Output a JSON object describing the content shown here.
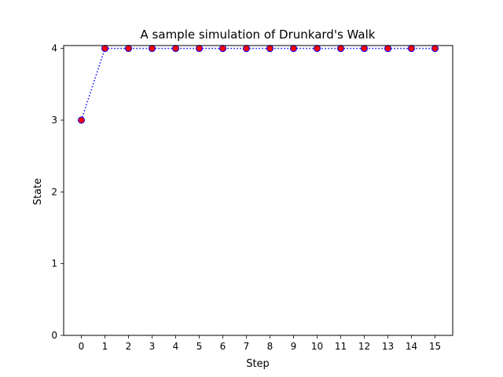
{
  "chart_data": {
    "type": "line",
    "title": "A sample simulation of Drunkard's Walk",
    "xlabel": "Step",
    "ylabel": "State",
    "x": [
      0,
      1,
      2,
      3,
      4,
      5,
      6,
      7,
      8,
      9,
      10,
      11,
      12,
      13,
      14,
      15
    ],
    "series": [
      {
        "values": [
          3,
          4,
          4,
          4,
          4,
          4,
          4,
          4,
          4,
          4,
          4,
          4,
          4,
          4,
          4,
          4
        ],
        "line_style": "dotted",
        "line_color": "#0000ff",
        "marker": "circle",
        "marker_face_color": "#ff0000",
        "marker_edge_color": "#0000ff"
      }
    ],
    "xticks": [
      0,
      1,
      2,
      3,
      4,
      5,
      6,
      7,
      8,
      9,
      10,
      11,
      12,
      13,
      14,
      15
    ],
    "yticks": [
      0,
      1,
      2,
      3,
      4
    ],
    "xlim": [
      -0.75,
      15.75
    ],
    "ylim": [
      0,
      4.04
    ],
    "grid": false,
    "legend": "none"
  }
}
